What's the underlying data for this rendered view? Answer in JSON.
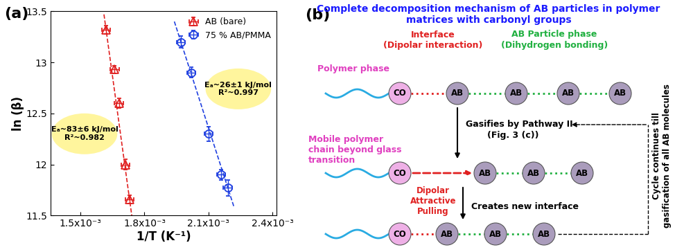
{
  "chart_data": {
    "type": "scatter",
    "panel_label": "(a)",
    "xlabel": "1/T (K⁻¹)",
    "ylabel": "ln (β)",
    "xlim": [
      0.00136,
      0.00242
    ],
    "xticks": [
      {
        "value": 0.0015,
        "label": "1.5x10⁻³"
      },
      {
        "value": 0.0018,
        "label": "1.8x10⁻³"
      },
      {
        "value": 0.0021,
        "label": "2.1x10⁻³"
      },
      {
        "value": 0.0024,
        "label": "2.4x10⁻³"
      }
    ],
    "ylim": [
      11.5,
      13.5
    ],
    "yticks": [
      11.5,
      12,
      12.5,
      13,
      13.5
    ],
    "legend": "upper right",
    "series": [
      {
        "name": "AB (bare)",
        "color": "#e02020",
        "marker": "triangle",
        "line_style": "dashed",
        "x": [
          0.00162,
          0.00166,
          0.00168,
          0.00171,
          0.00173
        ],
        "values": [
          13.32,
          12.93,
          12.6,
          12.0,
          11.66
        ],
        "x_error": [
          2e-05,
          2e-05,
          2e-05,
          2e-05,
          2e-05
        ],
        "y_error": [
          0.04,
          0.04,
          0.05,
          0.05,
          0.04
        ],
        "fit_x": [
          0.00161,
          0.001745
        ],
        "fit_values": [
          13.47,
          11.43
        ],
        "annotation": "Eₐ~83±6 kJ/mol\nR²~0.982"
      },
      {
        "name": "75 % AB/PMMA",
        "color": "#2040e0",
        "marker": "circle",
        "line_style": "dashed",
        "x": [
          0.00197,
          0.00202,
          0.0021,
          0.00216,
          0.00219
        ],
        "values": [
          13.2,
          12.9,
          12.3,
          11.9,
          11.77
        ],
        "x_error": [
          2e-05,
          2e-05,
          2e-05,
          2e-05,
          2e-05
        ],
        "y_error": [
          0.06,
          0.05,
          0.07,
          0.05,
          0.08
        ],
        "fit_x": [
          0.00194,
          0.00222
        ],
        "fit_values": [
          13.4,
          11.58
        ],
        "annotation": "Eₐ~26±1 kJ/mol\nR²~0.997"
      }
    ]
  },
  "diagram": {
    "panel_label": "(b)",
    "title": "Complete decomposition mechanism of AB particles in polymer\nmatrices with carbonyl groups",
    "interface": {
      "label": "Interface",
      "sublabel": "(Dipolar interaction)"
    },
    "particle_phase": {
      "label": "AB Particle phase",
      "sublabel": "(Dihydrogen bonding)"
    },
    "polymer_phase": "Polymer phase",
    "mobile_polymer": "Mobile polymer\nchain beyond glass\ntransition",
    "step1": {
      "label": "Gasifies by Pathway II",
      "sublabel": "(Fig. 3 (c))"
    },
    "pulling": "Dipolar\nAttractive\nPulling",
    "step2": "Creates new interface",
    "cycle": "Cycle continues till\ngasification of all AB molecules",
    "rows": [
      {
        "nodes": [
          "CO",
          "AB",
          "AB",
          "AB",
          "AB"
        ]
      },
      {
        "nodes": [
          "CO",
          "AB",
          "AB",
          "AB"
        ]
      },
      {
        "nodes": [
          "CO",
          "AB",
          "AB",
          "AB"
        ]
      }
    ]
  }
}
